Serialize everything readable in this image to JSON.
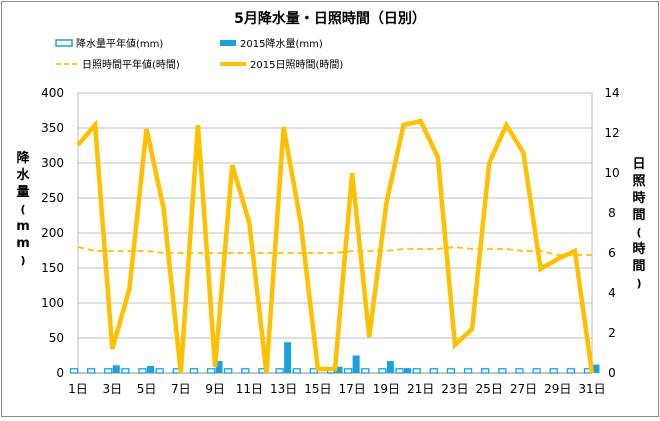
{
  "chart_data": {
    "type": "bar",
    "title": "5月降水量・日照時間（日別）",
    "ylabel_left": "降水量(mm)",
    "ylabel_right": "日照時間(時間)",
    "ylim_left": [
      0,
      400
    ],
    "ylim_right": [
      0,
      14
    ],
    "yticks_left": [
      0,
      50,
      100,
      150,
      200,
      250,
      300,
      350,
      400
    ],
    "yticks_right": [
      0,
      2,
      4,
      6,
      8,
      10,
      12,
      14
    ],
    "grid": true,
    "legend_position": "top",
    "x_tick_labels": [
      "1日",
      "3日",
      "5日",
      "7日",
      "9日",
      "11日",
      "13日",
      "15日",
      "17日",
      "19日",
      "21日",
      "23日",
      "25日",
      "27日",
      "29日",
      "31日"
    ],
    "days": [
      1,
      2,
      3,
      4,
      5,
      6,
      7,
      8,
      9,
      10,
      11,
      12,
      13,
      14,
      15,
      16,
      17,
      18,
      19,
      20,
      21,
      22,
      23,
      24,
      25,
      26,
      27,
      28,
      29,
      30,
      31
    ],
    "series": [
      {
        "name": "降水量平年値(mm)",
        "type": "bar",
        "axis": "left",
        "color": "#1ba1e2",
        "style": "outline",
        "values": [
          6,
          6,
          6,
          6,
          6,
          6,
          6,
          6,
          6,
          6,
          6,
          6,
          6,
          6,
          6,
          6,
          6,
          6,
          6,
          6,
          6,
          6,
          6,
          6,
          6,
          6,
          6,
          6,
          6,
          6,
          6
        ]
      },
      {
        "name": "2015降水量(mm)",
        "type": "bar",
        "axis": "left",
        "color": "#1ba1e2",
        "style": "filled",
        "values": [
          0,
          0,
          11,
          0,
          10,
          0,
          0,
          0,
          17,
          0,
          0,
          0,
          44,
          0,
          0,
          9,
          25,
          0,
          17,
          7,
          0,
          0,
          0,
          0,
          0,
          0,
          0,
          0,
          0,
          0,
          12
        ]
      },
      {
        "name": "日照時間平年値(時間)",
        "type": "line",
        "axis": "right",
        "color": "#ffc000",
        "style": "dashed",
        "values": [
          6.3,
          6.1,
          6.1,
          6.1,
          6.1,
          6.0,
          6.0,
          6.0,
          6.0,
          6.0,
          6.0,
          6.0,
          6.0,
          6.0,
          6.0,
          6.0,
          6.1,
          6.1,
          6.1,
          6.2,
          6.2,
          6.2,
          6.3,
          6.2,
          6.2,
          6.2,
          6.1,
          6.1,
          5.9,
          5.9,
          5.9
        ]
      },
      {
        "name": "2015日照時間(時間)",
        "type": "line",
        "axis": "right",
        "color": "#ffc000",
        "style": "solid",
        "values": [
          11.4,
          12.4,
          1.2,
          4.2,
          12.2,
          8.2,
          0,
          12.4,
          0.3,
          10.4,
          7.5,
          0,
          12.3,
          7.5,
          0.2,
          0.2,
          10.0,
          1.8,
          8.5,
          12.4,
          12.6,
          10.8,
          1.4,
          2.2,
          10.5,
          12.4,
          11.0,
          5.2,
          5.7,
          6.1,
          0
        ]
      }
    ]
  }
}
